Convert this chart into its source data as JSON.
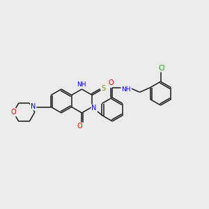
{
  "bg_color": "#ebebeb",
  "bond_color": "#1a1a1a",
  "atom_colors": {
    "N": "#0000ff",
    "O": "#ff0000",
    "S": "#8b8b00",
    "Cl": "#00aa00",
    "C": "#1a1a1a",
    "H": "#1a1a1a"
  },
  "lw": 1.1,
  "fs": 6.5,
  "scale": 1.0
}
